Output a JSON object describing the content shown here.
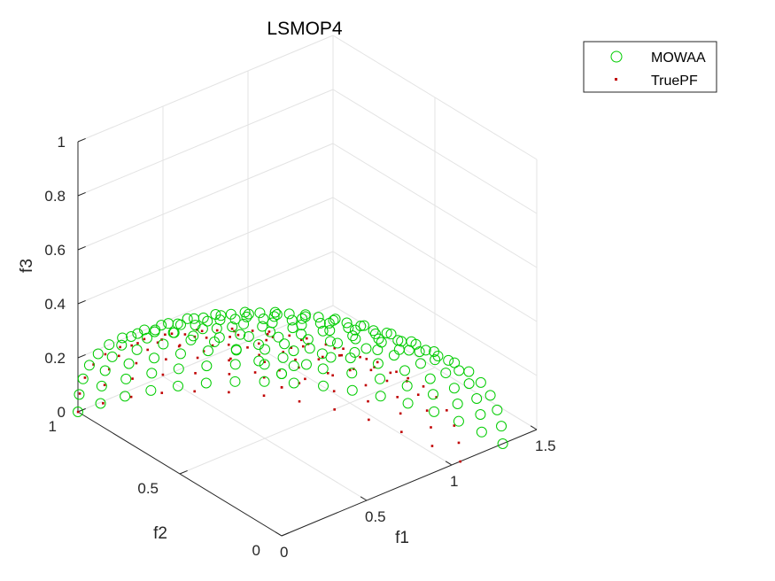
{
  "chart_data": {
    "type": "scatter",
    "title": "LSMOP4",
    "xlabel": "f1",
    "ylabel": "f2",
    "zlabel": "f3",
    "xlim": [
      0,
      1.5
    ],
    "ylim": [
      0,
      1
    ],
    "zlim": [
      0,
      1
    ],
    "xticks": [
      "0",
      "0.5",
      "1",
      "1.5"
    ],
    "yticks": [
      "0",
      "0.5",
      "1"
    ],
    "zticks": [
      "0",
      "0.2",
      "0.4",
      "0.6",
      "0.8",
      "1"
    ],
    "grid": true,
    "legend_position": "top-right",
    "series": [
      {
        "name": "MOWAA",
        "marker": "circle-open",
        "color": "#00cc00",
        "shape": "sphere-like front, f1^2+f2^2+f3^2 ≈ 1 (f1 extending to ≈ 1.3)"
      },
      {
        "name": "TruePF",
        "marker": "dot",
        "color": "#c00000",
        "shape": "unit sphere octant, f1^2+f2^2+f3^2 = 1"
      }
    ]
  }
}
